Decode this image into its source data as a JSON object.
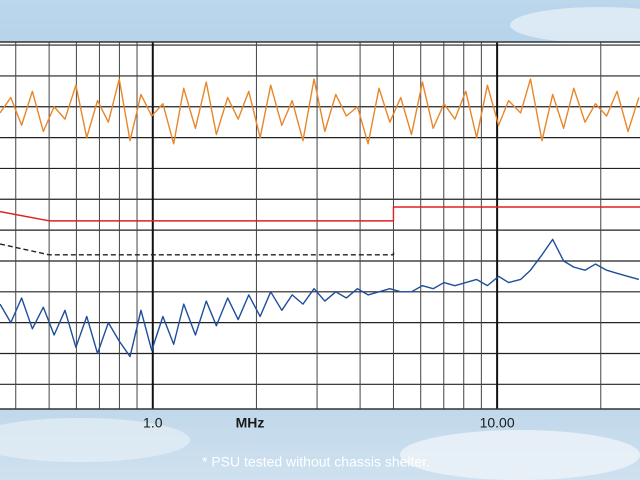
{
  "chart_data": {
    "type": "line",
    "x_label": "MHz",
    "footnote": "* PSU tested without chassis shelter.",
    "log_x": true,
    "grid": true,
    "xlim": [
      0.36,
      26
    ],
    "xticks": [
      {
        "value": 1,
        "label": "1.0"
      },
      {
        "value": 10,
        "label": "10.00"
      },
      30
    ],
    "xminor": [
      0.4,
      0.5,
      0.6,
      0.7,
      0.8,
      0.9,
      2,
      3,
      4,
      5,
      6,
      7,
      8,
      9,
      20
    ],
    "ylim": [
      -8,
      111
    ],
    "yticks": [
      0,
      10,
      20,
      30,
      40,
      50,
      60,
      70,
      80,
      90,
      100,
      110
    ],
    "series": [
      {
        "color": "#e8862a",
        "dash": false,
        "x": [
          0.36,
          0.387,
          0.416,
          0.447,
          0.481,
          0.517,
          0.556,
          0.598,
          0.643,
          0.691,
          0.743,
          0.799,
          0.859,
          0.924,
          0.993,
          1.07,
          1.15,
          1.23,
          1.33,
          1.43,
          1.53,
          1.65,
          1.77,
          1.9,
          2.05,
          2.2,
          2.37,
          2.54,
          2.73,
          2.94,
          3.16,
          3.4,
          3.65,
          3.93,
          4.22,
          4.54,
          4.88,
          5.25,
          5.64,
          6.07,
          6.52,
          7.01,
          7.54,
          8.11,
          8.72,
          9.37,
          10.1,
          10.8,
          11.7,
          12.5,
          13.5,
          14.5,
          15.6,
          16.7,
          18,
          19.3,
          20.8,
          22.3,
          24,
          25.8
        ],
        "values": [
          88,
          93,
          84,
          95,
          82,
          90,
          86,
          97,
          80,
          92,
          85,
          99,
          79,
          94,
          87,
          91,
          78,
          96,
          83,
          98,
          81,
          93,
          86,
          95,
          80,
          97,
          84,
          92,
          79,
          99,
          82,
          94,
          87,
          90,
          78,
          96,
          85,
          93,
          81,
          98,
          83,
          91,
          86,
          95,
          80,
          97,
          84,
          92,
          88,
          99,
          79,
          94,
          83,
          96,
          85,
          91,
          87,
          95,
          82,
          93
        ]
      },
      {
        "color": "#e02020",
        "dash": false,
        "x": [
          0.36,
          0.5,
          5,
          5,
          26
        ],
        "values": [
          56,
          53,
          53,
          57.5,
          57.5
        ]
      },
      {
        "color": "#222222",
        "dash": true,
        "x": [
          0.36,
          0.5,
          5,
          5
        ],
        "values": [
          45.5,
          42,
          42,
          43
        ]
      },
      {
        "color": "#1f4e9c",
        "dash": false,
        "x": [
          0.36,
          0.387,
          0.416,
          0.447,
          0.481,
          0.517,
          0.556,
          0.598,
          0.643,
          0.691,
          0.743,
          0.799,
          0.859,
          0.924,
          0.993,
          1.07,
          1.15,
          1.23,
          1.33,
          1.43,
          1.53,
          1.65,
          1.77,
          1.9,
          2.05,
          2.2,
          2.37,
          2.54,
          2.73,
          2.94,
          3.16,
          3.4,
          3.65,
          3.93,
          4.22,
          4.54,
          4.88,
          5.25,
          5.64,
          6.07,
          6.52,
          7.01,
          7.54,
          8.11,
          8.72,
          9.37,
          10.1,
          10.8,
          11.7,
          12.5,
          13.5,
          14.5,
          15.6,
          16.7,
          18,
          19.3,
          20.8,
          22.3,
          24,
          25.8
        ],
        "values": [
          26,
          20,
          28,
          18,
          25,
          16,
          24,
          12,
          22,
          10,
          20,
          14,
          9,
          24,
          11,
          22,
          13,
          26,
          16,
          27,
          19,
          28,
          21,
          29,
          22,
          30,
          24,
          29,
          26,
          31,
          27,
          30,
          28,
          31,
          29,
          30,
          31,
          30,
          30,
          32,
          31,
          33,
          32,
          33,
          34,
          32,
          35,
          33,
          34,
          37,
          42,
          47,
          40,
          38,
          37,
          39,
          37,
          36,
          35,
          34
        ]
      }
    ]
  }
}
